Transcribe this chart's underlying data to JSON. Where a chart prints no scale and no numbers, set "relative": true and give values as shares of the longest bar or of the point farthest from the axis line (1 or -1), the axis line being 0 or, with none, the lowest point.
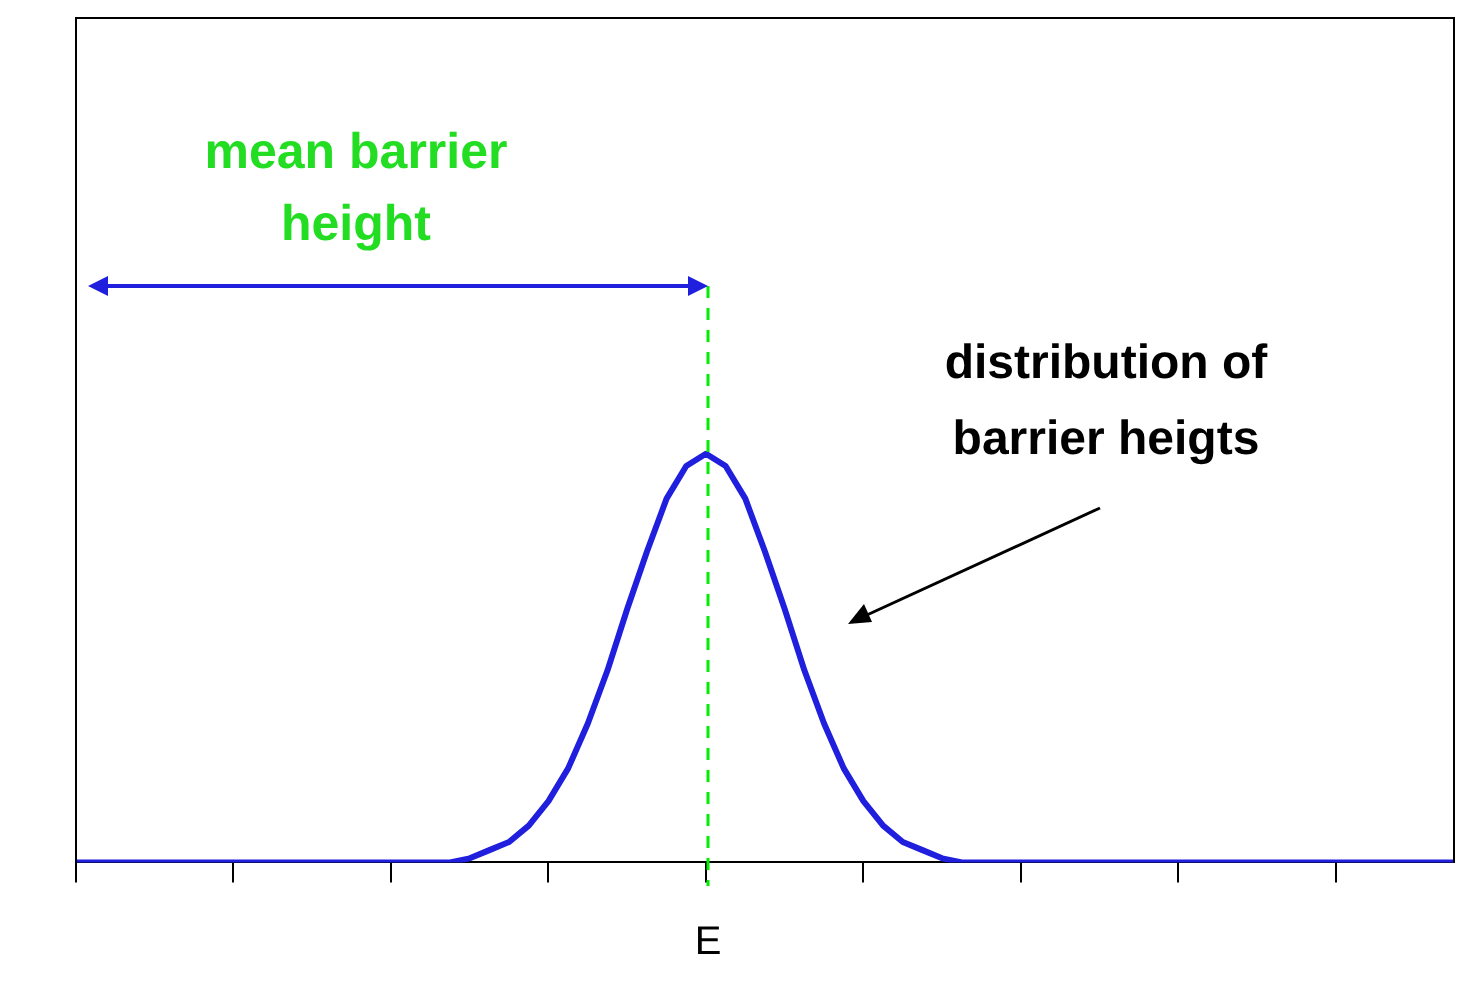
{
  "chart_data": {
    "type": "line",
    "relative": true,
    "grid": false,
    "legend": false,
    "marker": "none",
    "line_style": "solid",
    "categories": [
      null,
      null,
      null,
      null,
      null,
      null,
      null,
      null,
      null,
      null,
      null,
      null,
      null,
      null,
      null,
      null,
      null,
      null,
      null,
      null,
      null,
      null,
      null,
      null,
      null,
      null,
      null,
      null,
      null,
      null,
      null,
      null,
      null,
      null,
      null,
      null,
      null,
      null,
      null,
      null,
      null,
      null,
      null,
      null,
      null,
      null,
      null,
      null,
      null,
      null,
      null,
      null,
      null,
      null,
      null,
      null,
      null,
      null,
      null,
      null,
      null,
      null,
      null,
      null,
      null,
      null,
      null,
      null,
      null,
      null,
      null
    ],
    "series": [
      {
        "color": "#1f1fdd",
        "values": [
          0,
          0,
          0,
          0,
          0,
          0,
          0,
          0,
          0,
          0,
          0,
          0,
          0,
          0,
          0,
          0,
          0,
          0,
          0,
          0,
          0.01,
          0.03,
          0.05,
          0.09,
          0.15,
          0.23,
          0.34,
          0.47,
          0.62,
          0.76,
          0.89,
          0.97,
          1,
          0.97,
          0.89,
          0.76,
          0.62,
          0.47,
          0.34,
          0.23,
          0.15,
          0.09,
          0.05,
          0.03,
          0.01,
          0,
          0,
          0,
          0,
          0,
          0,
          0,
          0,
          0,
          0,
          0,
          0,
          0,
          0,
          0,
          0,
          0,
          0,
          0,
          0,
          0,
          0,
          0,
          0,
          0,
          0
        ]
      }
    ],
    "annotations": [
      "mean barrier height",
      "distribution of barrier heigts",
      "E"
    ]
  }
}
